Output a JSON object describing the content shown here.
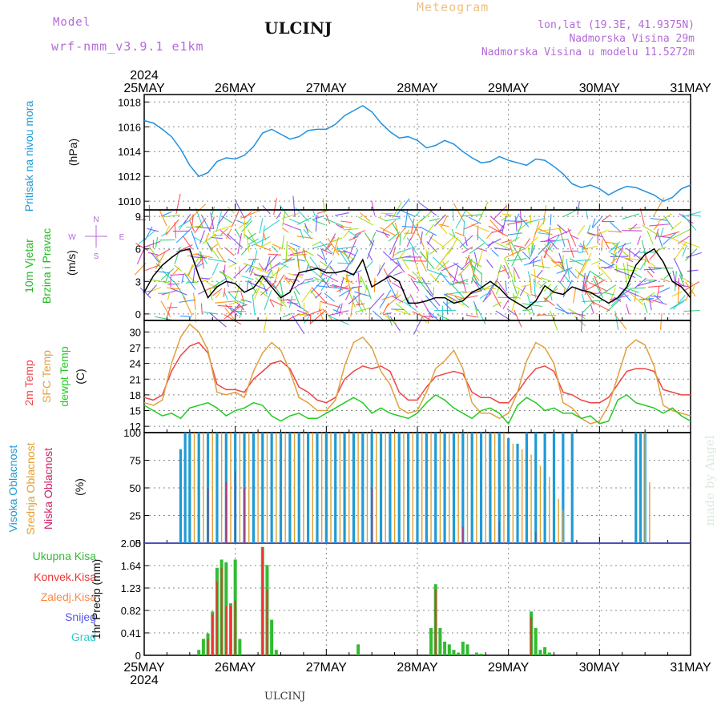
{
  "header": {
    "model_label": "Model",
    "model_value": "wrf-nmm_v3.9.1  e1km",
    "station": "ULCINJ",
    "meteogram": "Meteogram",
    "lonlat": "lon,lat (19.3E, 41.9375N)",
    "elevation": "Nadmorska Visina 29m",
    "model_elevation": "Nadmorska Visina u modelu 11.5272m",
    "watermark": "made by Angel",
    "bottom_station": "ULCINJ"
  },
  "time_axis": {
    "year": "2024",
    "day_labels": [
      "25MAY",
      "26MAY",
      "27MAY",
      "28MAY",
      "29MAY",
      "30MAY",
      "31MAY"
    ]
  },
  "colors": {
    "pressure": "#1e90e0",
    "wind_speed": "#000000",
    "wind_speed_label": "#22bb22",
    "temp2m": "#ee4444",
    "sfc_temp": "#e0a040",
    "dewpoint": "#22cc22",
    "high_cloud": "#1e9ad6",
    "mid_cloud": "#e0a030",
    "low_cloud": "#cc2266",
    "precip_total": "#33bb33",
    "precip_conv": "#ee3333",
    "precip_frozen": "#ff8844",
    "snow": "#5555ee",
    "hail": "#33cccc"
  },
  "chart_data": [
    {
      "type": "line",
      "panel": "pressure",
      "labels": [
        "Pritisak na nivou mora",
        "(hPa)"
      ],
      "ylim": [
        1009.3,
        1018.6
      ],
      "yticks": [
        1010,
        1012,
        1014,
        1016,
        1018
      ],
      "grid": true,
      "series": [
        {
          "x": [
            0,
            0.1,
            0.2,
            0.3,
            0.4,
            0.5,
            0.6,
            0.7,
            0.8,
            0.9,
            1.0,
            1.1,
            1.2,
            1.3,
            1.4,
            1.5,
            1.6,
            1.7,
            1.8,
            1.9,
            2.0,
            2.1,
            2.2,
            2.3,
            2.4,
            2.5,
            2.6,
            2.7,
            2.8,
            2.9,
            3.0,
            3.1,
            3.2,
            3.3,
            3.4,
            3.5,
            3.6,
            3.7,
            3.8,
            3.9,
            4.0,
            4.1,
            4.2,
            4.3,
            4.4,
            4.5,
            4.6,
            4.7,
            4.8,
            4.9,
            5.0,
            5.1,
            5.2,
            5.3,
            5.4,
            5.5,
            5.6,
            5.7,
            5.8,
            5.9,
            6.0
          ],
          "y": [
            1016.5,
            1016.3,
            1015.8,
            1015.2,
            1014.2,
            1012.9,
            1012.0,
            1012.3,
            1013.2,
            1013.5,
            1013.4,
            1013.7,
            1014.4,
            1015.5,
            1015.8,
            1015.4,
            1015.0,
            1015.2,
            1015.7,
            1015.8,
            1015.8,
            1016.2,
            1016.9,
            1017.3,
            1017.7,
            1017.2,
            1016.3,
            1015.6,
            1015.1,
            1015.2,
            1014.9,
            1014.3,
            1014.5,
            1014.9,
            1014.6,
            1014.0,
            1013.5,
            1013.1,
            1013.2,
            1013.6,
            1013.3,
            1013.1,
            1012.9,
            1013.4,
            1013.3,
            1012.8,
            1012.2,
            1011.4,
            1011.1,
            1011.3,
            1011.0,
            1010.5,
            1010.9,
            1011.2,
            1011.1,
            1010.8,
            1010.5,
            1010.0,
            1010.3,
            1011.0,
            1011.3
          ]
        }
      ]
    },
    {
      "type": "line",
      "panel": "wind",
      "labels": [
        "10m Vjetar",
        "Brzina i Pravac",
        "(m/s)"
      ],
      "compass": {
        "n": "N",
        "s": "S",
        "w": "W",
        "e": "E"
      },
      "ylim": [
        -0.6,
        9.6
      ],
      "yticks": [
        0,
        3,
        6,
        9
      ],
      "grid": true,
      "series": [
        {
          "name": "wind speed",
          "x": [
            0,
            0.1,
            0.2,
            0.3,
            0.4,
            0.5,
            0.6,
            0.7,
            0.8,
            0.9,
            1.0,
            1.1,
            1.2,
            1.3,
            1.4,
            1.5,
            1.6,
            1.7,
            1.8,
            1.9,
            2.0,
            2.1,
            2.2,
            2.3,
            2.4,
            2.5,
            2.6,
            2.7,
            2.8,
            2.9,
            3.0,
            3.1,
            3.2,
            3.3,
            3.4,
            3.5,
            3.6,
            3.7,
            3.8,
            3.9,
            4.0,
            4.1,
            4.2,
            4.3,
            4.4,
            4.5,
            4.6,
            4.7,
            4.8,
            4.9,
            5.0,
            5.1,
            5.2,
            5.3,
            5.4,
            5.5,
            5.6,
            5.7,
            5.8,
            5.9,
            6.0
          ],
          "y": [
            2.0,
            3.5,
            4.5,
            5.2,
            5.8,
            6.0,
            3.5,
            1.5,
            2.5,
            3.0,
            2.8,
            2.0,
            2.4,
            3.5,
            2.5,
            1.5,
            2.0,
            3.8,
            4.0,
            4.2,
            3.8,
            3.8,
            4.0,
            3.6,
            5.0,
            2.5,
            3.0,
            3.5,
            3.0,
            1.0,
            1.0,
            1.2,
            1.5,
            1.5,
            1.0,
            1.2,
            2.0,
            2.4,
            3.0,
            2.4,
            1.5,
            1.0,
            0.5,
            1.2,
            2.6,
            2.0,
            1.8,
            2.5,
            2.2,
            2.0,
            1.5,
            1.0,
            1.5,
            2.5,
            4.5,
            5.5,
            6.0,
            4.8,
            3.0,
            2.5,
            1.5
          ]
        }
      ]
    },
    {
      "type": "line",
      "panel": "temperature",
      "labels": [
        "2m Temp",
        "SFC Temp",
        "dewpt Temp",
        "(C)"
      ],
      "ylim": [
        10.8,
        32.2
      ],
      "yticks": [
        12,
        15,
        18,
        21,
        24,
        27,
        30
      ],
      "grid": true,
      "series": [
        {
          "name": "2m Temp",
          "x": [
            0,
            0.1,
            0.2,
            0.3,
            0.4,
            0.5,
            0.6,
            0.7,
            0.8,
            0.9,
            1.0,
            1.1,
            1.2,
            1.3,
            1.4,
            1.5,
            1.6,
            1.7,
            1.8,
            1.9,
            2.0,
            2.1,
            2.2,
            2.3,
            2.4,
            2.5,
            2.6,
            2.7,
            2.8,
            2.9,
            3.0,
            3.1,
            3.2,
            3.3,
            3.4,
            3.5,
            3.6,
            3.7,
            3.8,
            3.9,
            4.0,
            4.1,
            4.2,
            4.3,
            4.4,
            4.5,
            4.6,
            4.7,
            4.8,
            4.9,
            5.0,
            5.1,
            5.2,
            5.3,
            5.4,
            5.5,
            5.6,
            5.7,
            5.8,
            5.9,
            6.0
          ],
          "y": [
            17.5,
            17.0,
            18.0,
            22.5,
            25.5,
            27.3,
            28.0,
            26.0,
            20.0,
            19.0,
            19.0,
            18.5,
            21.0,
            22.5,
            24.0,
            24.5,
            23.0,
            19.5,
            18.5,
            17.0,
            16.5,
            17.5,
            21.0,
            22.5,
            23.5,
            23.0,
            23.5,
            22.5,
            18.5,
            17.0,
            17.0,
            19.5,
            21.5,
            22.0,
            22.5,
            22.0,
            18.5,
            17.5,
            17.5,
            16.5,
            16.5,
            18.5,
            21.0,
            23.0,
            23.5,
            22.5,
            18.5,
            18.0,
            17.0,
            16.5,
            16.5,
            17.5,
            20.0,
            22.5,
            23.0,
            23.0,
            22.5,
            19.0,
            18.5,
            18.0,
            18.0
          ]
        },
        {
          "name": "SFC Temp",
          "x": [
            0,
            0.1,
            0.2,
            0.3,
            0.4,
            0.5,
            0.6,
            0.7,
            0.8,
            0.9,
            1.0,
            1.1,
            1.2,
            1.3,
            1.4,
            1.5,
            1.6,
            1.7,
            1.8,
            1.9,
            2.0,
            2.1,
            2.2,
            2.3,
            2.4,
            2.5,
            2.6,
            2.7,
            2.8,
            2.9,
            3.0,
            3.1,
            3.2,
            3.3,
            3.4,
            3.5,
            3.6,
            3.7,
            3.8,
            3.9,
            4.0,
            4.1,
            4.2,
            4.3,
            4.4,
            4.5,
            4.6,
            4.7,
            4.8,
            4.9,
            5.0,
            5.1,
            5.2,
            5.3,
            5.4,
            5.5,
            5.6,
            5.7,
            5.8,
            5.9,
            6.0
          ],
          "y": [
            16.5,
            16.0,
            17.0,
            24.0,
            29.0,
            31.5,
            30.0,
            26.5,
            18.5,
            18.0,
            18.5,
            17.5,
            22.5,
            26.0,
            28.0,
            26.5,
            22.5,
            17.5,
            16.5,
            15.0,
            15.0,
            17.0,
            23.5,
            28.0,
            29.0,
            27.0,
            22.5,
            20.0,
            15.5,
            14.5,
            15.0,
            18.5,
            23.0,
            24.5,
            26.5,
            23.0,
            16.5,
            14.5,
            14.5,
            13.5,
            14.5,
            18.5,
            24.5,
            28.0,
            27.0,
            24.0,
            16.5,
            15.5,
            13.5,
            12.5,
            13.0,
            16.0,
            21.5,
            27.0,
            28.5,
            27.5,
            23.5,
            16.0,
            15.0,
            14.5,
            14.0
          ]
        },
        {
          "name": "dewpt Temp",
          "x": [
            0,
            0.1,
            0.2,
            0.3,
            0.4,
            0.5,
            0.6,
            0.7,
            0.8,
            0.9,
            1.0,
            1.1,
            1.2,
            1.3,
            1.4,
            1.5,
            1.6,
            1.7,
            1.8,
            1.9,
            2.0,
            2.1,
            2.2,
            2.3,
            2.4,
            2.5,
            2.6,
            2.7,
            2.8,
            2.9,
            3.0,
            3.1,
            3.2,
            3.3,
            3.4,
            3.5,
            3.6,
            3.7,
            3.8,
            3.9,
            4.0,
            4.1,
            4.2,
            4.3,
            4.4,
            4.5,
            4.6,
            4.7,
            4.8,
            4.9,
            5.0,
            5.1,
            5.2,
            5.3,
            5.4,
            5.5,
            5.6,
            5.7,
            5.8,
            5.9,
            6.0
          ],
          "y": [
            16.0,
            15.0,
            14.0,
            14.5,
            13.5,
            15.5,
            16.0,
            16.5,
            15.5,
            14.0,
            15.0,
            15.5,
            16.5,
            16.0,
            14.0,
            13.0,
            14.0,
            14.5,
            13.5,
            13.5,
            14.5,
            15.5,
            16.5,
            17.5,
            16.5,
            14.5,
            15.5,
            14.5,
            14.0,
            13.5,
            14.5,
            16.5,
            18.0,
            17.0,
            15.5,
            14.5,
            13.5,
            15.0,
            15.5,
            14.5,
            12.5,
            16.0,
            17.5,
            16.5,
            15.0,
            15.5,
            14.5,
            14.5,
            13.5,
            14.0,
            12.5,
            13.0,
            17.0,
            18.0,
            16.5,
            16.0,
            15.5,
            14.5,
            15.5,
            14.0,
            13.0
          ]
        }
      ]
    },
    {
      "type": "bar",
      "panel": "clouds",
      "labels": [
        "Visoka Oblacnost",
        "Srednja Oblacnost",
        "Niska Oblacnost",
        "(%)"
      ],
      "ylim": [
        0,
        100
      ],
      "yticks": [
        0,
        25,
        50,
        75,
        100
      ],
      "grid": true,
      "series": [
        {
          "name": "Visoka Oblacnost",
          "x": [
            0.4,
            0.45,
            0.5,
            0.6,
            0.7,
            0.8,
            0.9,
            1.0,
            1.1,
            1.2,
            1.3,
            1.4,
            1.5,
            1.6,
            1.7,
            1.8,
            1.9,
            2.0,
            2.1,
            2.2,
            2.3,
            2.4,
            2.5,
            2.6,
            2.7,
            2.8,
            2.9,
            3.0,
            3.1,
            3.2,
            3.3,
            3.4,
            3.5,
            3.6,
            3.7,
            3.8,
            3.9,
            4.0,
            4.1,
            4.2,
            4.3,
            4.4,
            4.5,
            4.6,
            4.7,
            5.4,
            5.45,
            5.5
          ],
          "values": [
            85,
            100,
            100,
            100,
            100,
            100,
            100,
            100,
            100,
            100,
            100,
            100,
            100,
            100,
            100,
            100,
            100,
            100,
            100,
            100,
            100,
            100,
            100,
            100,
            100,
            100,
            100,
            100,
            100,
            100,
            100,
            100,
            100,
            100,
            100,
            100,
            100,
            95,
            90,
            100,
            100,
            100,
            100,
            100,
            100,
            100,
            100,
            100
          ]
        },
        {
          "name": "Srednja Oblacnost",
          "x": [
            0.55,
            0.65,
            0.75,
            0.85,
            0.95,
            1.05,
            1.15,
            1.25,
            1.35,
            1.45,
            1.55,
            1.65,
            1.75,
            1.85,
            1.95,
            2.05,
            2.15,
            2.25,
            2.35,
            2.45,
            2.55,
            2.65,
            2.75,
            2.85,
            2.95,
            3.05,
            3.15,
            3.25,
            3.35,
            3.45,
            3.55,
            3.65,
            3.75,
            3.85,
            3.95,
            4.05,
            4.15,
            4.25,
            4.35,
            4.45,
            4.55,
            4.6,
            5.5,
            5.55
          ],
          "values": [
            100,
            100,
            100,
            100,
            100,
            100,
            100,
            100,
            100,
            100,
            100,
            100,
            100,
            100,
            100,
            100,
            100,
            100,
            100,
            100,
            100,
            100,
            100,
            100,
            100,
            100,
            100,
            100,
            100,
            100,
            100,
            100,
            100,
            100,
            100,
            90,
            85,
            80,
            70,
            60,
            40,
            30,
            100,
            55
          ]
        },
        {
          "name": "Niska Oblacnost",
          "x": [
            0.7,
            0.9,
            1.0,
            1.1,
            2.5,
            3.5,
            3.9,
            4.3
          ],
          "values": [
            50,
            55,
            65,
            50,
            50,
            15,
            20,
            10
          ]
        }
      ]
    },
    {
      "type": "bar",
      "panel": "precipitation",
      "labels": [
        "Ukupna Kisa",
        "Konvek.Kisa",
        "Zaledj.Kisa",
        "Snijeg",
        "Grad",
        "1hr Precip (mm)"
      ],
      "ylim": [
        0,
        2.05
      ],
      "yticks": [
        0,
        0.41,
        0.82,
        1.23,
        1.64,
        2.05
      ],
      "grid": true,
      "series": [
        {
          "name": "Ukupna Kisa",
          "x": [
            0.6,
            0.65,
            0.7,
            0.75,
            0.8,
            0.85,
            0.9,
            0.95,
            1.0,
            1.05,
            1.3,
            1.35,
            1.4,
            1.45,
            2.35,
            3.15,
            3.2,
            3.25,
            3.3,
            3.35,
            3.4,
            3.45,
            3.5,
            3.55,
            3.65,
            3.7,
            4.25,
            4.3,
            4.35,
            4.4,
            4.45
          ],
          "values": [
            0.1,
            0.3,
            0.4,
            0.8,
            1.6,
            1.75,
            1.7,
            0.95,
            1.75,
            0.3,
            1.98,
            1.65,
            0.65,
            0.1,
            0.2,
            0.5,
            1.3,
            0.5,
            0.25,
            0.2,
            0.1,
            0.05,
            0.25,
            0.2,
            0.05,
            0.03,
            0.8,
            0.5,
            0.1,
            0.15,
            0.05
          ]
        },
        {
          "name": "Konvek.Kisa",
          "x": [
            0.7,
            0.75,
            0.8,
            0.85,
            0.9,
            0.95,
            1.0,
            1.3,
            1.35,
            3.2,
            4.25
          ],
          "values": [
            0.3,
            0.75,
            1.35,
            1.6,
            0.9,
            0.9,
            1.0,
            1.98,
            1.2,
            1.2,
            0.7
          ]
        }
      ]
    }
  ]
}
